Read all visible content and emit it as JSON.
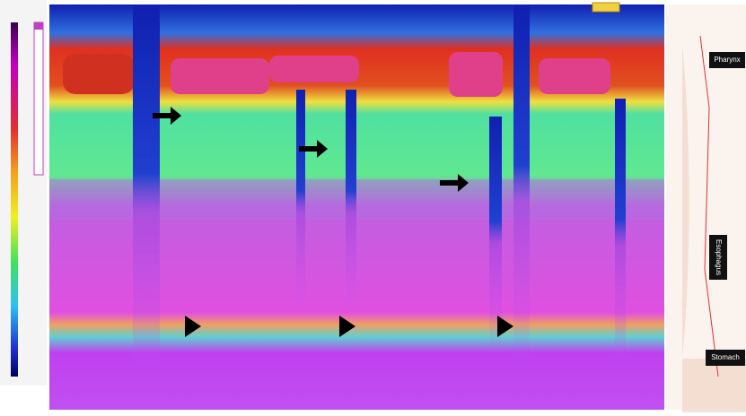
{
  "anatomy_labels": {
    "pharynx": "Pharynx",
    "esophagus": "Esophagus",
    "stomach": "Stomach"
  }
}
